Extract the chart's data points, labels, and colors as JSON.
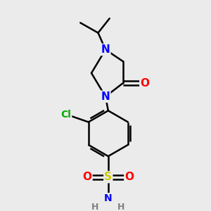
{
  "background_color": "#ebebeb",
  "atom_colors": {
    "C": "#000000",
    "N": "#0000ff",
    "O": "#ff0000",
    "S": "#cccc00",
    "Cl": "#00aa00",
    "H": "#808080"
  },
  "bond_color": "#000000",
  "bond_width": 1.8,
  "figsize": [
    3.0,
    3.0
  ],
  "dpi": 100
}
